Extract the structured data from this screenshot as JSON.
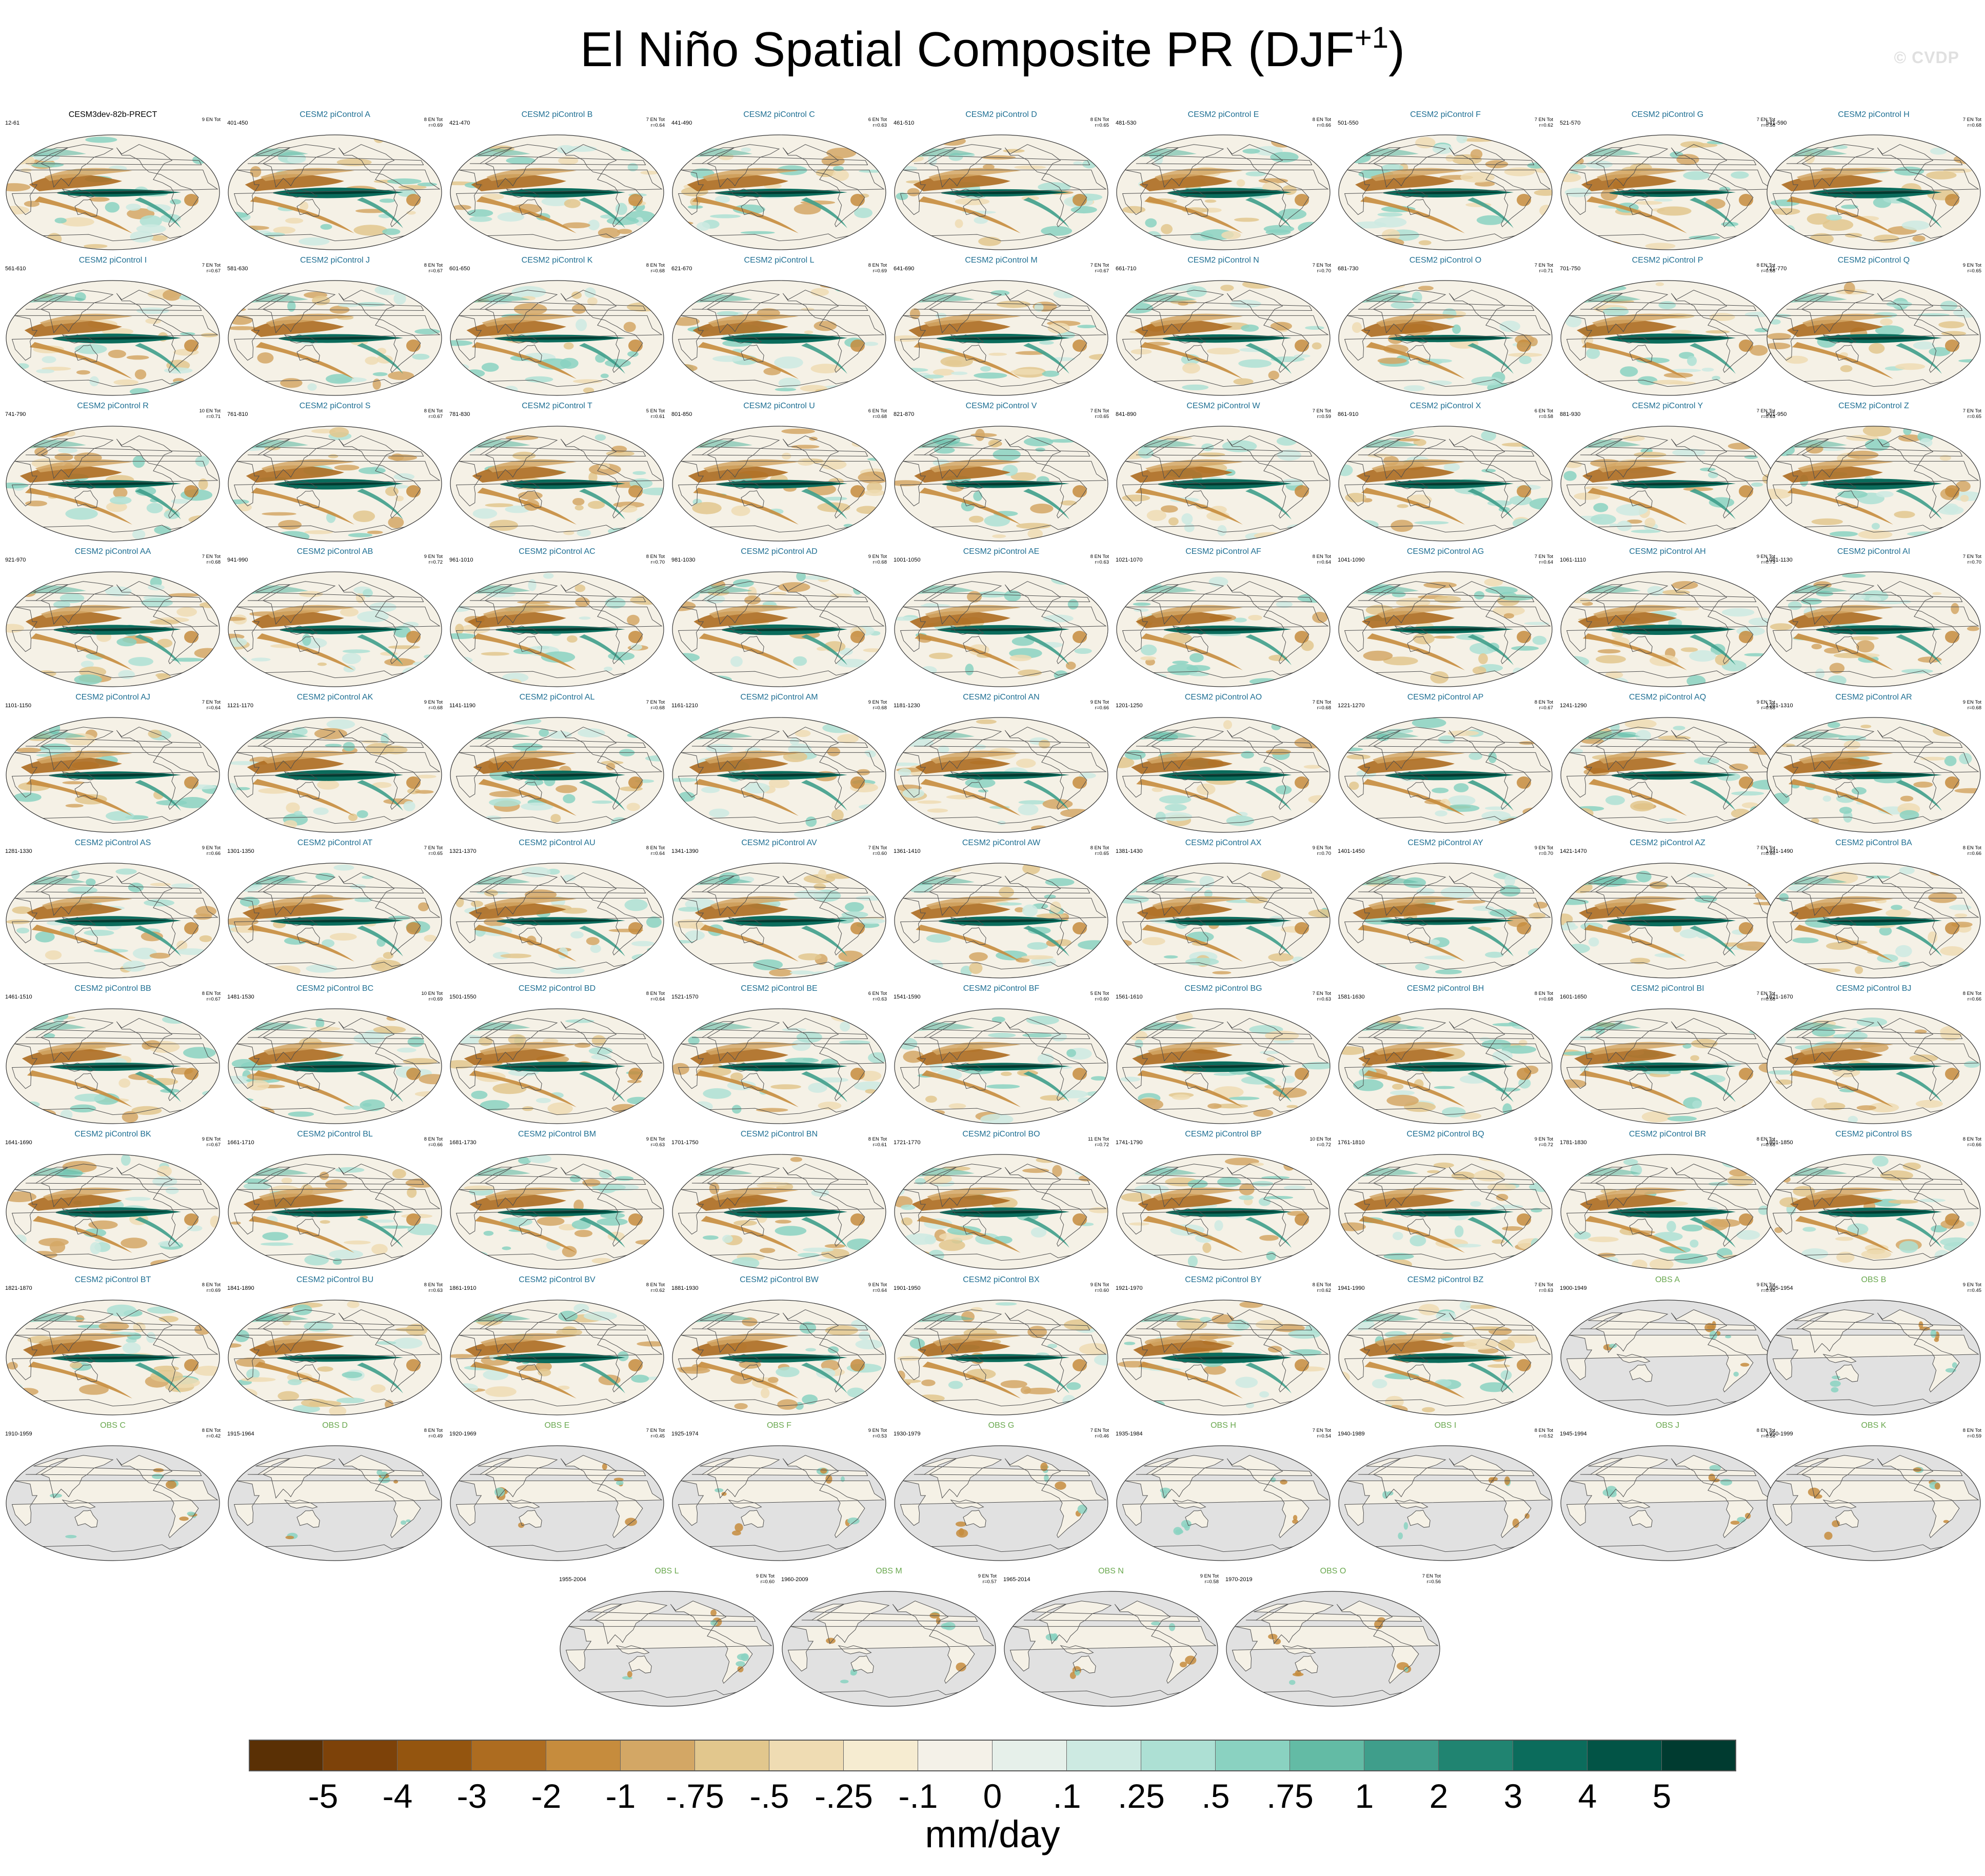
{
  "title": {
    "text": "El Niño Spatial Composite PR (DJF",
    "sup": "+1",
    "close": ")"
  },
  "watermark": "© CVDP",
  "colors": {
    "land_obs_missing": "#e1e1e1",
    "ocean_neutral": "#f5f1e6",
    "coast": "#4d4d4d",
    "panel_name_model": "#1f6f93",
    "panel_name_obs": "#6aa84f"
  },
  "panels": [
    {
      "name": "CESM3dev-82b-PRECT",
      "years": "12-61",
      "count": "9 EN Tot",
      "corr": "",
      "kind": "ctrl"
    },
    {
      "name": "CESM2 piControl A",
      "years": "401-450",
      "count": "8 EN Tot",
      "corr": "r=0.69",
      "kind": "model"
    },
    {
      "name": "CESM2 piControl B",
      "years": "421-470",
      "count": "7 EN Tot",
      "corr": "r=0.64",
      "kind": "model"
    },
    {
      "name": "CESM2 piControl C",
      "years": "441-490",
      "count": "6 EN Tot",
      "corr": "r=0.63",
      "kind": "model"
    },
    {
      "name": "CESM2 piControl D",
      "years": "461-510",
      "count": "8 EN Tot",
      "corr": "r=0.65",
      "kind": "model"
    },
    {
      "name": "CESM2 piControl E",
      "years": "481-530",
      "count": "8 EN Tot",
      "corr": "r=0.66",
      "kind": "model"
    },
    {
      "name": "CESM2 piControl F",
      "years": "501-550",
      "count": "7 EN Tot",
      "corr": "r=0.62",
      "kind": "model"
    },
    {
      "name": "CESM2 piControl G",
      "years": "521-570",
      "count": "7 EN Tot",
      "corr": "r=0.58",
      "kind": "model"
    },
    {
      "name": "CESM2 piControl H",
      "years": "541-590",
      "count": "7 EN Tot",
      "corr": "r=0.68",
      "kind": "model"
    },
    {
      "name": "CESM2 piControl I",
      "years": "561-610",
      "count": "7 EN Tot",
      "corr": "r=0.67",
      "kind": "model"
    },
    {
      "name": "CESM2 piControl J",
      "years": "581-630",
      "count": "8 EN Tot",
      "corr": "r=0.67",
      "kind": "model"
    },
    {
      "name": "CESM2 piControl K",
      "years": "601-650",
      "count": "8 EN Tot",
      "corr": "r=0.68",
      "kind": "model"
    },
    {
      "name": "CESM2 piControl L",
      "years": "621-670",
      "count": "8 EN Tot",
      "corr": "r=0.69",
      "kind": "model"
    },
    {
      "name": "CESM2 piControl M",
      "years": "641-690",
      "count": "7 EN Tot",
      "corr": "r=0.67",
      "kind": "model"
    },
    {
      "name": "CESM2 piControl N",
      "years": "661-710",
      "count": "7 EN Tot",
      "corr": "r=0.70",
      "kind": "model"
    },
    {
      "name": "CESM2 piControl O",
      "years": "681-730",
      "count": "7 EN Tot",
      "corr": "r=0.71",
      "kind": "model"
    },
    {
      "name": "CESM2 piControl P",
      "years": "701-750",
      "count": "8 EN Tot",
      "corr": "r=0.68",
      "kind": "model"
    },
    {
      "name": "CESM2 piControl Q",
      "years": "721-770",
      "count": "9 EN Tot",
      "corr": "r=0.65",
      "kind": "model"
    },
    {
      "name": "CESM2 piControl R",
      "years": "741-790",
      "count": "10 EN Tot",
      "corr": "r=0.71",
      "kind": "model"
    },
    {
      "name": "CESM2 piControl S",
      "years": "761-810",
      "count": "8 EN Tot",
      "corr": "r=0.67",
      "kind": "model"
    },
    {
      "name": "CESM2 piControl T",
      "years": "781-830",
      "count": "5 EN Tot",
      "corr": "r=0.61",
      "kind": "model"
    },
    {
      "name": "CESM2 piControl U",
      "years": "801-850",
      "count": "6 EN Tot",
      "corr": "r=0.68",
      "kind": "model"
    },
    {
      "name": "CESM2 piControl V",
      "years": "821-870",
      "count": "7 EN Tot",
      "corr": "r=0.65",
      "kind": "model"
    },
    {
      "name": "CESM2 piControl W",
      "years": "841-890",
      "count": "7 EN Tot",
      "corr": "r=0.59",
      "kind": "model"
    },
    {
      "name": "CESM2 piControl X",
      "years": "861-910",
      "count": "6 EN Tot",
      "corr": "r=0.58",
      "kind": "model"
    },
    {
      "name": "CESM2 piControl Y",
      "years": "881-930",
      "count": "7 EN Tot",
      "corr": "r=0.63",
      "kind": "model"
    },
    {
      "name": "CESM2 piControl Z",
      "years": "901-950",
      "count": "7 EN Tot",
      "corr": "r=0.65",
      "kind": "model"
    },
    {
      "name": "CESM2 piControl AA",
      "years": "921-970",
      "count": "7 EN Tot",
      "corr": "r=0.68",
      "kind": "model"
    },
    {
      "name": "CESM2 piControl AB",
      "years": "941-990",
      "count": "9 EN Tot",
      "corr": "r=0.72",
      "kind": "model"
    },
    {
      "name": "CESM2 piControl AC",
      "years": "961-1010",
      "count": "8 EN Tot",
      "corr": "r=0.70",
      "kind": "model"
    },
    {
      "name": "CESM2 piControl AD",
      "years": "981-1030",
      "count": "9 EN Tot",
      "corr": "r=0.68",
      "kind": "model"
    },
    {
      "name": "CESM2 piControl AE",
      "years": "1001-1050",
      "count": "8 EN Tot",
      "corr": "r=0.63",
      "kind": "model"
    },
    {
      "name": "CESM2 piControl AF",
      "years": "1021-1070",
      "count": "8 EN Tot",
      "corr": "r=0.64",
      "kind": "model"
    },
    {
      "name": "CESM2 piControl AG",
      "years": "1041-1090",
      "count": "7 EN Tot",
      "corr": "r=0.64",
      "kind": "model"
    },
    {
      "name": "CESM2 piControl AH",
      "years": "1061-1110",
      "count": "9 EN Tot",
      "corr": "r=0.73",
      "kind": "model"
    },
    {
      "name": "CESM2 piControl AI",
      "years": "1081-1130",
      "count": "7 EN Tot",
      "corr": "r=0.70",
      "kind": "model"
    },
    {
      "name": "CESM2 piControl AJ",
      "years": "1101-1150",
      "count": "7 EN Tot",
      "corr": "r=0.64",
      "kind": "model"
    },
    {
      "name": "CESM2 piControl AK",
      "years": "1121-1170",
      "count": "9 EN Tot",
      "corr": "r=0.68",
      "kind": "model"
    },
    {
      "name": "CESM2 piControl AL",
      "years": "1141-1190",
      "count": "7 EN Tot",
      "corr": "r=0.68",
      "kind": "model"
    },
    {
      "name": "CESM2 piControl AM",
      "years": "1161-1210",
      "count": "9 EN Tot",
      "corr": "r=0.68",
      "kind": "model"
    },
    {
      "name": "CESM2 piControl AN",
      "years": "1181-1230",
      "count": "9 EN Tot",
      "corr": "r=0.66",
      "kind": "model"
    },
    {
      "name": "CESM2 piControl AO",
      "years": "1201-1250",
      "count": "7 EN Tot",
      "corr": "r=0.68",
      "kind": "model"
    },
    {
      "name": "CESM2 piControl AP",
      "years": "1221-1270",
      "count": "8 EN Tot",
      "corr": "r=0.67",
      "kind": "model"
    },
    {
      "name": "CESM2 piControl AQ",
      "years": "1241-1290",
      "count": "9 EN Tot",
      "corr": "r=0.68",
      "kind": "model"
    },
    {
      "name": "CESM2 piControl AR",
      "years": "1261-1310",
      "count": "9 EN Tot",
      "corr": "r=0.68",
      "kind": "model"
    },
    {
      "name": "CESM2 piControl AS",
      "years": "1281-1330",
      "count": "9 EN Tot",
      "corr": "r=0.66",
      "kind": "model"
    },
    {
      "name": "CESM2 piControl AT",
      "years": "1301-1350",
      "count": "7 EN Tot",
      "corr": "r=0.65",
      "kind": "model"
    },
    {
      "name": "CESM2 piControl AU",
      "years": "1321-1370",
      "count": "8 EN Tot",
      "corr": "r=0.64",
      "kind": "model"
    },
    {
      "name": "CESM2 piControl AV",
      "years": "1341-1390",
      "count": "7 EN Tot",
      "corr": "r=0.60",
      "kind": "model"
    },
    {
      "name": "CESM2 piControl AW",
      "years": "1361-1410",
      "count": "8 EN Tot",
      "corr": "r=0.65",
      "kind": "model"
    },
    {
      "name": "CESM2 piControl AX",
      "years": "1381-1430",
      "count": "9 EN Tot",
      "corr": "r=0.70",
      "kind": "model"
    },
    {
      "name": "CESM2 piControl AY",
      "years": "1401-1450",
      "count": "9 EN Tot",
      "corr": "r=0.70",
      "kind": "model"
    },
    {
      "name": "CESM2 piControl AZ",
      "years": "1421-1470",
      "count": "7 EN Tot",
      "corr": "r=0.66",
      "kind": "model"
    },
    {
      "name": "CESM2 piControl BA",
      "years": "1441-1490",
      "count": "8 EN Tot",
      "corr": "r=0.66",
      "kind": "model"
    },
    {
      "name": "CESM2 piControl BB",
      "years": "1461-1510",
      "count": "8 EN Tot",
      "corr": "r=0.67",
      "kind": "model"
    },
    {
      "name": "CESM2 piControl BC",
      "years": "1481-1530",
      "count": "10 EN Tot",
      "corr": "r=0.69",
      "kind": "model"
    },
    {
      "name": "CESM2 piControl BD",
      "years": "1501-1550",
      "count": "8 EN Tot",
      "corr": "r=0.64",
      "kind": "model"
    },
    {
      "name": "CESM2 piControl BE",
      "years": "1521-1570",
      "count": "6 EN Tot",
      "corr": "r=0.63",
      "kind": "model"
    },
    {
      "name": "CESM2 piControl BF",
      "years": "1541-1590",
      "count": "5 EN Tot",
      "corr": "r=0.60",
      "kind": "model"
    },
    {
      "name": "CESM2 piControl BG",
      "years": "1561-1610",
      "count": "7 EN Tot",
      "corr": "r=0.63",
      "kind": "model"
    },
    {
      "name": "CESM2 piControl BH",
      "years": "1581-1630",
      "count": "8 EN Tot",
      "corr": "r=0.68",
      "kind": "model"
    },
    {
      "name": "CESM2 piControl BI",
      "years": "1601-1650",
      "count": "7 EN Tot",
      "corr": "r=0.68",
      "kind": "model"
    },
    {
      "name": "CESM2 piControl BJ",
      "years": "1621-1670",
      "count": "8 EN Tot",
      "corr": "r=0.66",
      "kind": "model"
    },
    {
      "name": "CESM2 piControl BK",
      "years": "1641-1690",
      "count": "9 EN Tot",
      "corr": "r=0.67",
      "kind": "model"
    },
    {
      "name": "CESM2 piControl BL",
      "years": "1661-1710",
      "count": "8 EN Tot",
      "corr": "r=0.66",
      "kind": "model"
    },
    {
      "name": "CESM2 piControl BM",
      "years": "1681-1730",
      "count": "9 EN Tot",
      "corr": "r=0.63",
      "kind": "model"
    },
    {
      "name": "CESM2 piControl BN",
      "years": "1701-1750",
      "count": "8 EN Tot",
      "corr": "r=0.61",
      "kind": "model"
    },
    {
      "name": "CESM2 piControl BO",
      "years": "1721-1770",
      "count": "11 EN Tot",
      "corr": "r=0.72",
      "kind": "model"
    },
    {
      "name": "CESM2 piControl BP",
      "years": "1741-1790",
      "count": "10 EN Tot",
      "corr": "r=0.72",
      "kind": "model"
    },
    {
      "name": "CESM2 piControl BQ",
      "years": "1761-1810",
      "count": "9 EN Tot",
      "corr": "r=0.72",
      "kind": "model"
    },
    {
      "name": "CESM2 piControl BR",
      "years": "1781-1830",
      "count": "8 EN Tot",
      "corr": "r=0.68",
      "kind": "model"
    },
    {
      "name": "CESM2 piControl BS",
      "years": "1801-1850",
      "count": "8 EN Tot",
      "corr": "r=0.66",
      "kind": "model"
    },
    {
      "name": "CESM2 piControl BT",
      "years": "1821-1870",
      "count": "8 EN Tot",
      "corr": "r=0.69",
      "kind": "model"
    },
    {
      "name": "CESM2 piControl BU",
      "years": "1841-1890",
      "count": "8 EN Tot",
      "corr": "r=0.63",
      "kind": "model"
    },
    {
      "name": "CESM2 piControl BV",
      "years": "1861-1910",
      "count": "8 EN Tot",
      "corr": "r=0.62",
      "kind": "model"
    },
    {
      "name": "CESM2 piControl BW",
      "years": "1881-1930",
      "count": "9 EN Tot",
      "corr": "r=0.64",
      "kind": "model"
    },
    {
      "name": "CESM2 piControl BX",
      "years": "1901-1950",
      "count": "9 EN Tot",
      "corr": "r=0.60",
      "kind": "model"
    },
    {
      "name": "CESM2 piControl BY",
      "years": "1921-1970",
      "count": "8 EN Tot",
      "corr": "r=0.62",
      "kind": "model"
    },
    {
      "name": "CESM2 piControl BZ",
      "years": "1941-1990",
      "count": "7 EN Tot",
      "corr": "r=0.63",
      "kind": "model"
    },
    {
      "name": "OBS A",
      "years": "1900-1949",
      "count": "9 EN Tot",
      "corr": "r=0.45",
      "kind": "obs"
    },
    {
      "name": "OBS B",
      "years": "1905-1954",
      "count": "9 EN Tot",
      "corr": "r=0.45",
      "kind": "obs"
    },
    {
      "name": "OBS C",
      "years": "1910-1959",
      "count": "8 EN Tot",
      "corr": "r=0.42",
      "kind": "obs"
    },
    {
      "name": "OBS D",
      "years": "1915-1964",
      "count": "8 EN Tot",
      "corr": "r=0.49",
      "kind": "obs"
    },
    {
      "name": "OBS E",
      "years": "1920-1969",
      "count": "7 EN Tot",
      "corr": "r=0.45",
      "kind": "obs"
    },
    {
      "name": "OBS F",
      "years": "1925-1974",
      "count": "9 EN Tot",
      "corr": "r=0.53",
      "kind": "obs"
    },
    {
      "name": "OBS G",
      "years": "1930-1979",
      "count": "7 EN Tot",
      "corr": "r=0.46",
      "kind": "obs"
    },
    {
      "name": "OBS H",
      "years": "1935-1984",
      "count": "7 EN Tot",
      "corr": "r=0.54",
      "kind": "obs"
    },
    {
      "name": "OBS I",
      "years": "1940-1989",
      "count": "8 EN Tot",
      "corr": "r=0.52",
      "kind": "obs"
    },
    {
      "name": "OBS J",
      "years": "1945-1994",
      "count": "8 EN Tot",
      "corr": "r=0.56",
      "kind": "obs"
    },
    {
      "name": "OBS K",
      "years": "1950-1999",
      "count": "8 EN Tot",
      "corr": "r=0.59",
      "kind": "obs"
    },
    {
      "name": "OBS L",
      "years": "1955-2004",
      "count": "9 EN Tot",
      "corr": "r=0.60",
      "kind": "obs"
    },
    {
      "name": "OBS M",
      "years": "1960-2009",
      "count": "9 EN Tot",
      "corr": "r=0.57",
      "kind": "obs"
    },
    {
      "name": "OBS N",
      "years": "1965-2014",
      "count": "9 EN Tot",
      "corr": "r=0.58",
      "kind": "obs"
    },
    {
      "name": "OBS O",
      "years": "1970-2019",
      "count": "7 EN Tot",
      "corr": "r=0.56",
      "kind": "obs"
    }
  ],
  "colorbar": {
    "colors": [
      "#5a3005",
      "#7d4209",
      "#94550f",
      "#ad6c20",
      "#c68c3d",
      "#d3a765",
      "#e2c78d",
      "#efdcb3",
      "#f6ecd1",
      "#f4f1e8",
      "#e6f0ea",
      "#cdeae2",
      "#ade0d4",
      "#8ad2c1",
      "#63bba5",
      "#3f9e8b",
      "#208471",
      "#0b6c5c",
      "#025446",
      "#003b30"
    ],
    "ticks": [
      "-5",
      "-4",
      "-3",
      "-2",
      "-1",
      "-.75",
      "-.5",
      "-.25",
      "-.1",
      "0",
      ".1",
      ".25",
      ".5",
      ".75",
      "1",
      "2",
      "3",
      "4",
      "5"
    ],
    "unit": "mm/day"
  },
  "chart_data": {
    "type": "heatmap",
    "title": "El Niño Spatial Composite PR (DJF+1)",
    "panel_count": 94,
    "colorbar_levels": [
      -5,
      -4,
      -3,
      -2,
      -1,
      -0.75,
      -0.5,
      -0.25,
      -0.1,
      0,
      0.1,
      0.25,
      0.5,
      0.75,
      1,
      2,
      3,
      4,
      5
    ],
    "colorbar_unit": "mm/day"
  }
}
